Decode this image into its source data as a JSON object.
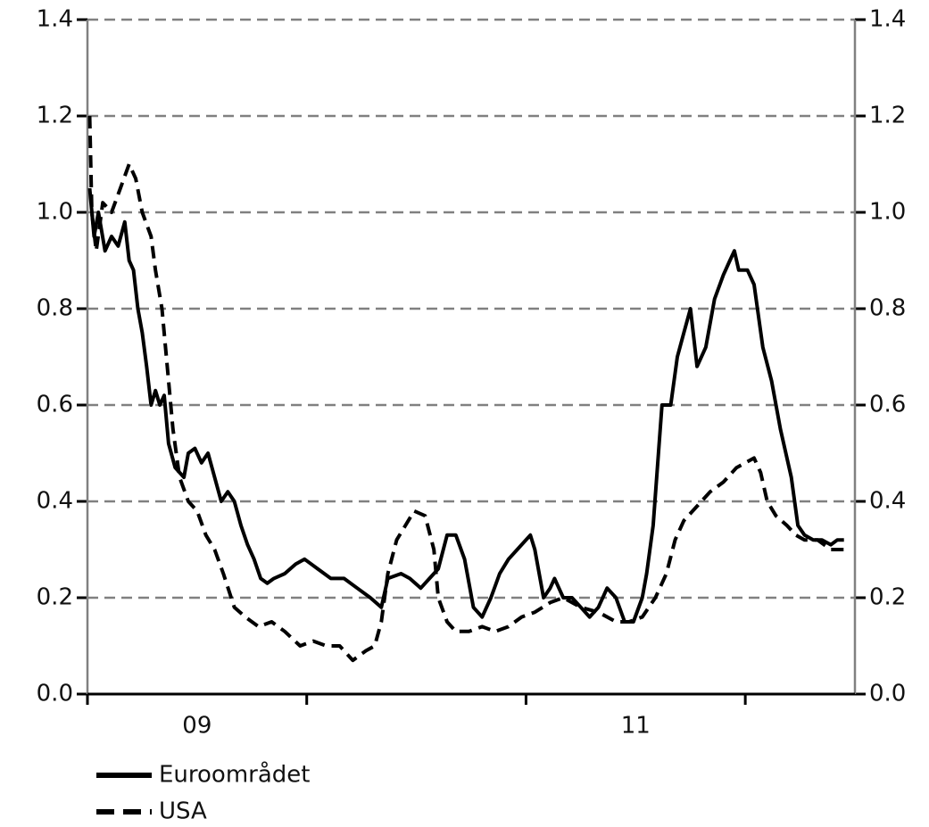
{
  "chart_data": {
    "type": "line",
    "xlim": [
      9,
      12.5
    ],
    "xticks": [
      {
        "value": 9.5,
        "label": "09"
      },
      {
        "value": 11.5,
        "label": "11"
      }
    ],
    "xtick_marks": [
      9,
      10,
      11,
      12
    ],
    "ylim": [
      0,
      1.4
    ],
    "yticks": [
      {
        "value": 0,
        "label": "0.0"
      },
      0.2,
      0.4,
      0.6,
      0.8,
      {
        "value": 1,
        "label": "1.0"
      },
      1.2,
      1.4
    ],
    "y2lim": [
      0,
      1.4
    ],
    "y2ticks": [
      {
        "value": 0,
        "label": "0.0"
      },
      0.2,
      0.4,
      0.6,
      0.8,
      {
        "value": 1,
        "label": "1.0"
      },
      1.2,
      1.4
    ],
    "grid": true,
    "legend": "bottom-left",
    "series": [
      {
        "name": "Euroområdet",
        "color": "#000000",
        "dash": false,
        "x": [
          9.01,
          9.03,
          9.05,
          9.08,
          9.11,
          9.14,
          9.17,
          9.19,
          9.21,
          9.23,
          9.25,
          9.27,
          9.29,
          9.31,
          9.33,
          9.35,
          9.37,
          9.4,
          9.44,
          9.46,
          9.49,
          9.52,
          9.55,
          9.58,
          9.61,
          9.64,
          9.67,
          9.7,
          9.73,
          9.76,
          9.79,
          9.82,
          9.85,
          9.9,
          9.95,
          9.99,
          10.05,
          10.11,
          10.17,
          10.23,
          10.29,
          10.34,
          10.37,
          10.43,
          10.47,
          10.52,
          10.56,
          10.6,
          10.64,
          10.68,
          10.72,
          10.76,
          10.8,
          10.84,
          10.88,
          10.92,
          10.96,
          11.02,
          11.04,
          11.08,
          11.11,
          11.13,
          11.17,
          11.21,
          11.25,
          11.29,
          11.33,
          11.37,
          11.41,
          11.45,
          11.49,
          11.53,
          11.55,
          11.58,
          11.62,
          11.66,
          11.69,
          11.72,
          11.75,
          11.78,
          11.82,
          11.86,
          11.9,
          11.93,
          11.95,
          11.97,
          12.01,
          12.04,
          12.08,
          12.12,
          12.16,
          12.21,
          12.24,
          12.27,
          12.31,
          12.35,
          12.39,
          12.42,
          12.45
        ],
        "values": [
          1.05,
          0.95,
          1.0,
          0.92,
          0.95,
          0.93,
          0.98,
          0.9,
          0.88,
          0.8,
          0.75,
          0.68,
          0.6,
          0.63,
          0.6,
          0.62,
          0.52,
          0.47,
          0.45,
          0.5,
          0.51,
          0.48,
          0.5,
          0.45,
          0.4,
          0.42,
          0.4,
          0.35,
          0.31,
          0.28,
          0.24,
          0.23,
          0.24,
          0.25,
          0.27,
          0.28,
          0.26,
          0.24,
          0.24,
          0.22,
          0.2,
          0.18,
          0.24,
          0.25,
          0.24,
          0.22,
          0.24,
          0.26,
          0.33,
          0.33,
          0.28,
          0.18,
          0.16,
          0.2,
          0.25,
          0.28,
          0.3,
          0.33,
          0.3,
          0.2,
          0.22,
          0.24,
          0.2,
          0.2,
          0.18,
          0.16,
          0.18,
          0.22,
          0.2,
          0.15,
          0.15,
          0.2,
          0.25,
          0.35,
          0.6,
          0.6,
          0.7,
          0.75,
          0.8,
          0.68,
          0.72,
          0.82,
          0.87,
          0.9,
          0.92,
          0.88,
          0.88,
          0.85,
          0.72,
          0.65,
          0.55,
          0.45,
          0.35,
          0.33,
          0.32,
          0.32,
          0.31,
          0.32,
          0.32
        ]
      },
      {
        "name": "USA",
        "color": "#000000",
        "dash": true,
        "x": [
          9.01,
          9.02,
          9.04,
          9.07,
          9.11,
          9.15,
          9.19,
          9.22,
          9.25,
          9.29,
          9.31,
          9.34,
          9.37,
          9.39,
          9.42,
          9.46,
          9.5,
          9.54,
          9.58,
          9.62,
          9.67,
          9.72,
          9.78,
          9.84,
          9.9,
          9.97,
          10.03,
          10.09,
          10.15,
          10.21,
          10.27,
          10.31,
          10.34,
          10.37,
          10.41,
          10.45,
          10.49,
          10.54,
          10.58,
          10.6,
          10.64,
          10.68,
          10.74,
          10.8,
          10.86,
          10.92,
          10.98,
          11.04,
          11.11,
          11.17,
          11.25,
          11.33,
          11.41,
          11.47,
          11.53,
          11.59,
          11.64,
          11.68,
          11.72,
          11.78,
          11.84,
          11.9,
          11.96,
          12.0,
          12.04,
          12.07,
          12.1,
          12.14,
          12.19,
          12.23,
          12.27,
          12.33,
          12.39,
          12.45
        ],
        "values": [
          1.2,
          1.0,
          0.92,
          1.02,
          1.0,
          1.05,
          1.1,
          1.07,
          1.0,
          0.95,
          0.88,
          0.8,
          0.65,
          0.55,
          0.45,
          0.4,
          0.38,
          0.33,
          0.3,
          0.25,
          0.18,
          0.16,
          0.14,
          0.15,
          0.13,
          0.1,
          0.11,
          0.1,
          0.1,
          0.07,
          0.09,
          0.1,
          0.15,
          0.25,
          0.32,
          0.35,
          0.38,
          0.37,
          0.3,
          0.2,
          0.15,
          0.13,
          0.13,
          0.14,
          0.13,
          0.14,
          0.16,
          0.17,
          0.19,
          0.2,
          0.18,
          0.17,
          0.15,
          0.15,
          0.16,
          0.2,
          0.25,
          0.32,
          0.36,
          0.39,
          0.42,
          0.44,
          0.47,
          0.48,
          0.49,
          0.46,
          0.4,
          0.37,
          0.35,
          0.33,
          0.32,
          0.32,
          0.3,
          0.3
        ]
      }
    ]
  }
}
